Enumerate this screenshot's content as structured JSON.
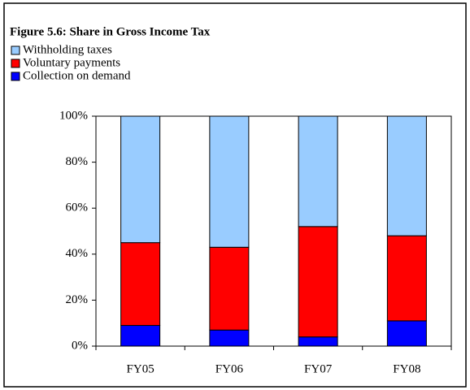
{
  "chart_data": {
    "type": "stacked-bar",
    "title": "Figure 5.6: Share in Gross Income Tax",
    "categories": [
      "FY05",
      "FY06",
      "FY07",
      "FY08"
    ],
    "series": [
      {
        "name": "Withholding taxes",
        "color": "#99ccff",
        "values": [
          55,
          57,
          48,
          52
        ]
      },
      {
        "name": "Voluntary payments",
        "color": "#ff0000",
        "values": [
          36,
          36,
          48,
          37
        ]
      },
      {
        "name": "Collection on demand",
        "color": "#0000ff",
        "values": [
          9,
          7,
          4,
          11
        ]
      }
    ],
    "ylim": [
      0,
      100
    ],
    "yticks": [
      {
        "value": 0,
        "label": "0%"
      },
      {
        "value": 20,
        "label": "20%"
      },
      {
        "value": 40,
        "label": "40%"
      },
      {
        "value": 60,
        "label": "60%"
      },
      {
        "value": 80,
        "label": "80%"
      },
      {
        "value": 100,
        "label": "100%"
      }
    ]
  }
}
